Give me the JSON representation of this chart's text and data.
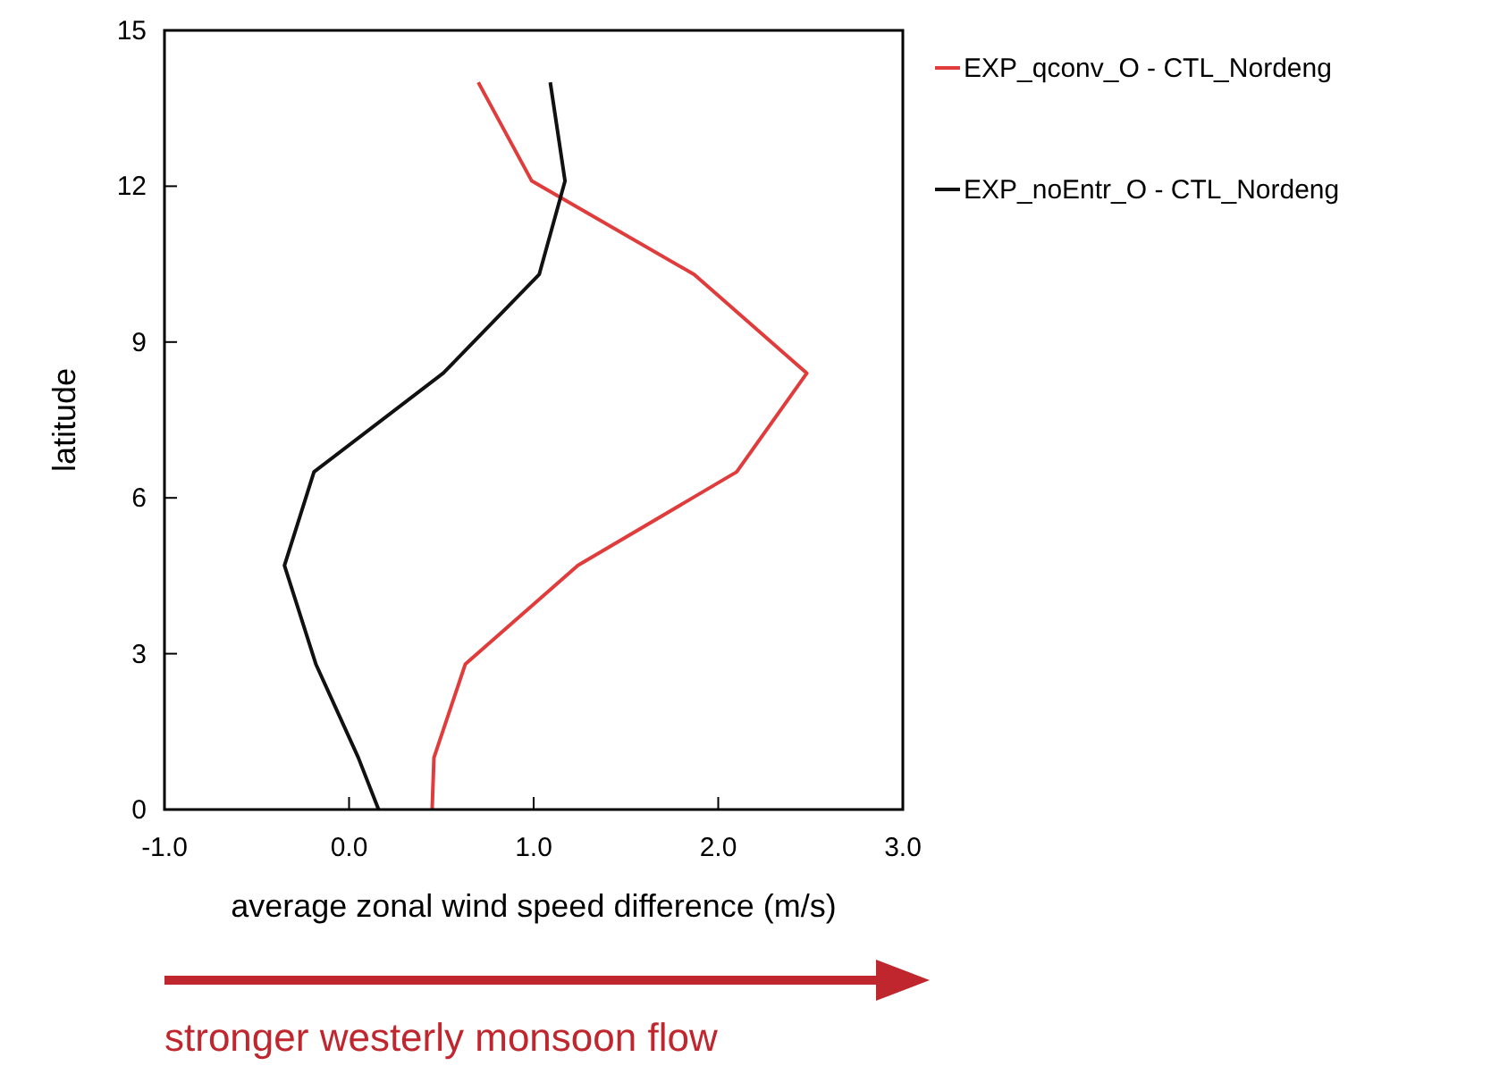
{
  "chart_data": {
    "type": "line",
    "xlabel": "average zonal wind speed difference (m/s)",
    "ylabel": "latitude",
    "xlim": [
      -1,
      3
    ],
    "xticks": [
      {
        "value": -1,
        "label": "-1.0"
      },
      {
        "value": 0,
        "label": "0.0"
      },
      {
        "value": 1,
        "label": "1.0"
      },
      {
        "value": 2,
        "label": "2.0"
      },
      {
        "value": 3,
        "label": "3.0"
      }
    ],
    "ylim": [
      0,
      15
    ],
    "yticks": [
      0,
      3,
      6,
      9,
      12,
      15
    ],
    "grid": false,
    "legend": "right",
    "series": [
      {
        "name": "EXP_qconv_O - CTL_Nordeng",
        "color": "#e03c3c",
        "x": [
          0.7,
          0.99,
          1.87,
          2.48,
          2.1,
          1.24,
          0.63,
          0.46,
          0.45
        ],
        "values": [
          14,
          12.1,
          10.3,
          8.4,
          6.5,
          4.7,
          2.8,
          1,
          0
        ]
      },
      {
        "name": "EXP_noEntr_O - CTL_Nordeng",
        "color": "#111111",
        "x": [
          1.09,
          1.17,
          1.03,
          0.51,
          -0.19,
          -0.35,
          -0.18,
          0.05,
          0.16
        ],
        "values": [
          14,
          12.1,
          10.3,
          8.4,
          6.5,
          4.7,
          2.8,
          1,
          0
        ]
      }
    ],
    "annotations": [
      "stronger westerly monsoon flow"
    ]
  }
}
